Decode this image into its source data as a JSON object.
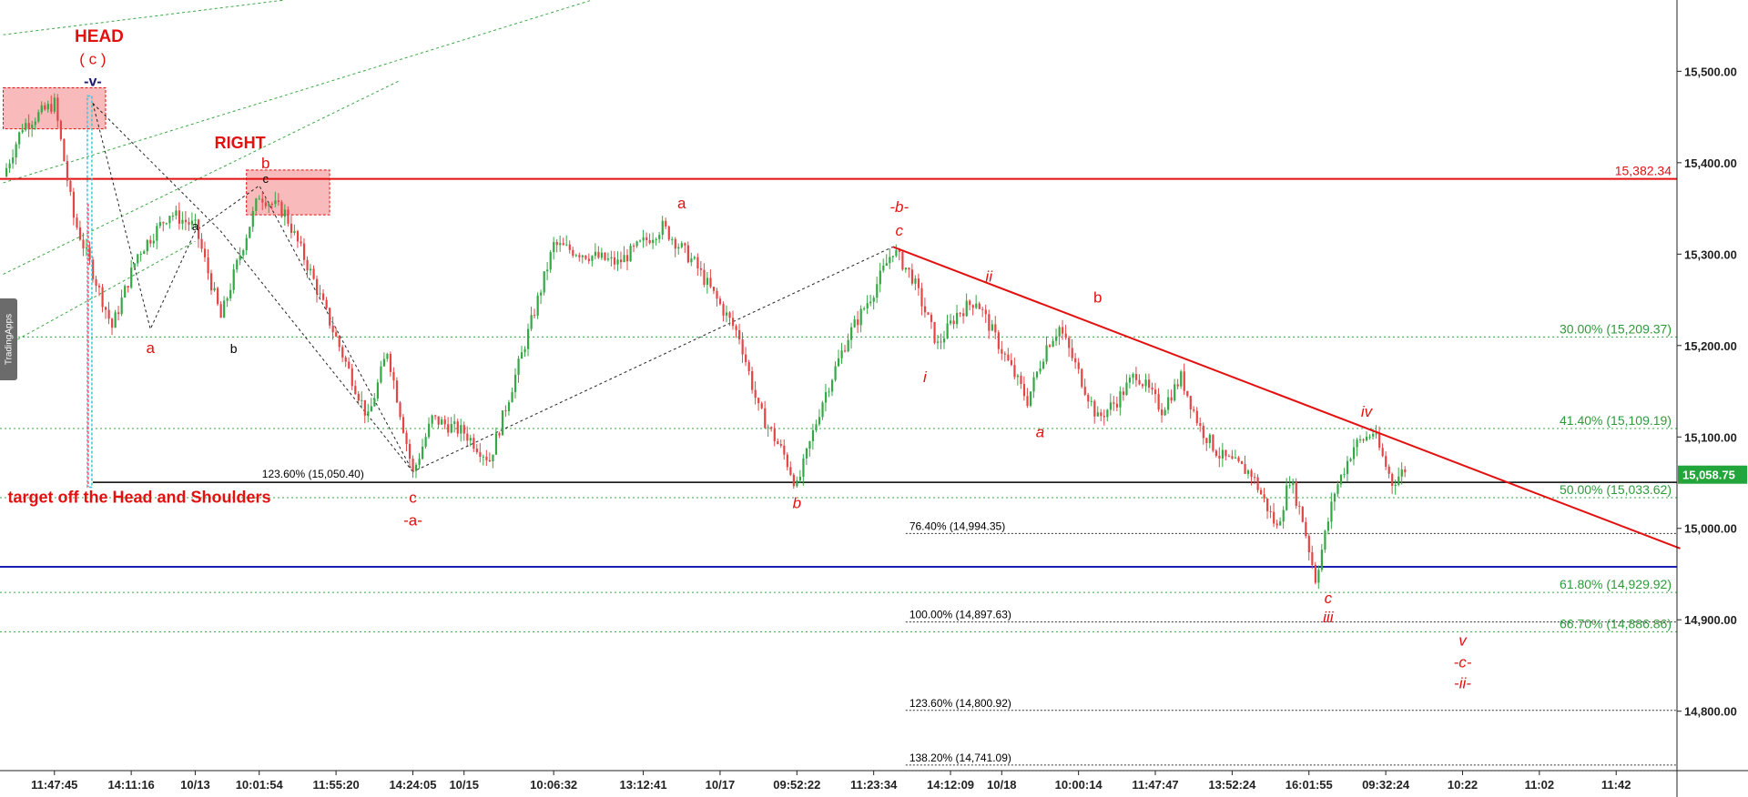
{
  "brand": "TradingApps",
  "chart_data": {
    "type": "candlestick",
    "y_axis": {
      "ticks": [
        "15,500.00",
        "15,400.00",
        "15,300.00",
        "15,200.00",
        "15,100.00",
        "15,000.00",
        "14,900.00",
        "14,800.00"
      ],
      "tick_values": [
        15500,
        15400,
        15300,
        15200,
        15100,
        15000,
        14900,
        14800
      ],
      "range": [
        14735,
        15578
      ]
    },
    "x_axis": {
      "ticks": [
        "11:47:45",
        "14:11:16",
        "10/13",
        "10:01:54",
        "11:55:20",
        "14:24:05",
        "10/15",
        "10:06:32",
        "13:12:41",
        "10/17",
        "09:52:22",
        "11:23:34",
        "14:12:09",
        "10/18",
        "10:00:14",
        "11:47:47",
        "13:52:24",
        "16:01:55",
        "09:32:24",
        "10:22",
        "11:02",
        "11:42"
      ],
      "tick_index": [
        8,
        20,
        30,
        40,
        52,
        64,
        72,
        86,
        100,
        112,
        124,
        136,
        148,
        156,
        168,
        180,
        192,
        204,
        216,
        228,
        240,
        252
      ],
      "bars_total": 262
    },
    "price_path": [
      [
        0,
        15385
      ],
      [
        3,
        15440
      ],
      [
        8,
        15465
      ],
      [
        11,
        15340
      ],
      [
        14,
        15280
      ],
      [
        17,
        15220
      ],
      [
        21,
        15300
      ],
      [
        26,
        15345
      ],
      [
        30,
        15330
      ],
      [
        34,
        15230
      ],
      [
        37,
        15300
      ],
      [
        40,
        15365
      ],
      [
        44,
        15345
      ],
      [
        48,
        15280
      ],
      [
        53,
        15190
      ],
      [
        57,
        15120
      ],
      [
        60,
        15195
      ],
      [
        64,
        15060
      ],
      [
        67,
        15120
      ],
      [
        72,
        15105
      ],
      [
        76,
        15075
      ],
      [
        81,
        15190
      ],
      [
        86,
        15310
      ],
      [
        91,
        15300
      ],
      [
        96,
        15290
      ],
      [
        103,
        15330
      ],
      [
        108,
        15290
      ],
      [
        115,
        15210
      ],
      [
        118,
        15130
      ],
      [
        122,
        15080
      ],
      [
        124,
        15045
      ],
      [
        128,
        15140
      ],
      [
        132,
        15210
      ],
      [
        136,
        15260
      ],
      [
        139,
        15305
      ],
      [
        142,
        15275
      ],
      [
        146,
        15200
      ],
      [
        149,
        15235
      ],
      [
        152,
        15250
      ],
      [
        156,
        15195
      ],
      [
        160,
        15140
      ],
      [
        163,
        15200
      ],
      [
        165,
        15220
      ],
      [
        168,
        15170
      ],
      [
        171,
        15120
      ],
      [
        174,
        15140
      ],
      [
        177,
        15170
      ],
      [
        181,
        15130
      ],
      [
        184,
        15165
      ],
      [
        187,
        15110
      ],
      [
        190,
        15080
      ],
      [
        195,
        15060
      ],
      [
        199,
        15000
      ],
      [
        201,
        15055
      ],
      [
        203,
        15010
      ],
      [
        205,
        14945
      ],
      [
        208,
        15040
      ],
      [
        211,
        15090
      ],
      [
        214,
        15105
      ],
      [
        217,
        15050
      ],
      [
        219,
        15065
      ]
    ],
    "current_price": {
      "value": 15058.75,
      "label": "15,058.75"
    },
    "horizontal_lines": [
      {
        "value": 15382.34,
        "label": "15,382.34",
        "color": "#e31010",
        "style": "solid"
      },
      {
        "value": 14958,
        "label": "",
        "color": "#1a1fb4",
        "style": "solid"
      },
      {
        "value": 15050.4,
        "label": "",
        "color": "#000000",
        "style": "solid"
      }
    ],
    "fib_levels_right": [
      {
        "value": 15209.37,
        "label": "30.00% (15,209.37)"
      },
      {
        "value": 15109.19,
        "label": "41.40% (15,109.19)"
      },
      {
        "value": 15033.62,
        "label": "50.00% (15,033.62)"
      },
      {
        "value": 14929.92,
        "label": "61.80% (14,929.92)"
      },
      {
        "value": 14886.86,
        "label": "66.70% (14,886.86)"
      }
    ],
    "fib_levels_mid": [
      {
        "value": 14994.35,
        "label": "76.40% (14,994.35)"
      },
      {
        "value": 14897.63,
        "label": "100.00% (14,897.63)"
      },
      {
        "value": 14800.92,
        "label": "123.60% (14,800.92)"
      },
      {
        "value": 14741.09,
        "label": "138.20% (14,741.09)"
      }
    ],
    "fib_level_left": {
      "value": 15050.4,
      "label": "123.60% (15,050.40)"
    },
    "trend_line": {
      "from": [
        139,
        15308
      ],
      "to": [
        262,
        14978
      ],
      "color": "#e31010"
    },
    "channel_lines": [
      {
        "from": [
          0,
          15198
        ],
        "to": [
          30,
          15314
        ],
        "color": "#3aa843"
      },
      {
        "from": [
          0,
          15278
        ],
        "to": [
          62,
          15490
        ],
        "color": "#3aa843"
      },
      {
        "from": [
          0,
          15378
        ],
        "to": [
          92,
          15578
        ],
        "color": "#3aa843"
      },
      {
        "from": [
          0,
          15540
        ],
        "to": [
          44,
          15578
        ],
        "color": "#3aa843"
      }
    ],
    "dotted_paths": [
      [
        [
          14,
          15465
        ],
        [
          23,
          15218
        ],
        [
          30,
          15325
        ],
        [
          40,
          15375
        ],
        [
          64,
          15062
        ],
        [
          139,
          15308
        ]
      ],
      [
        [
          14,
          15465
        ],
        [
          34,
          15325
        ],
        [
          64,
          15062
        ]
      ]
    ],
    "zones": [
      {
        "x0": 0,
        "x1": 16,
        "y0": 15482,
        "y1": 15437
      },
      {
        "x0": 38,
        "x1": 51,
        "y0": 15392,
        "y1": 15343
      }
    ],
    "head_marker": {
      "x": 13.5,
      "y0": 15473,
      "y1": 15045
    },
    "wave_labels": [
      {
        "x": 15,
        "value": 15532,
        "text": "HEAD",
        "color": "#e31010",
        "size": 19,
        "bold": true,
        "italic": false
      },
      {
        "x": 14,
        "value": 15508,
        "text": "( c )",
        "color": "#e31010",
        "size": 17,
        "bold": false,
        "italic": false
      },
      {
        "x": 14,
        "value": 15484,
        "text": "-v-",
        "color": "#1a1a6e",
        "size": 16,
        "bold": true,
        "italic": false
      },
      {
        "x": 37,
        "value": 15416,
        "text": "RIGHT",
        "color": "#e31010",
        "size": 18,
        "bold": true,
        "italic": false
      },
      {
        "x": 41,
        "value": 15394,
        "text": "b",
        "color": "#e31010",
        "size": 17,
        "bold": false,
        "italic": false
      },
      {
        "x": 41,
        "value": 15378,
        "text": "c",
        "color": "#000000",
        "size": 13,
        "bold": false,
        "italic": false
      },
      {
        "x": 30,
        "value": 15326,
        "text": "a",
        "color": "#000000",
        "size": 13,
        "bold": false,
        "italic": false
      },
      {
        "x": 23,
        "value": 15192,
        "text": "a",
        "color": "#e31010",
        "size": 17,
        "bold": false,
        "italic": false
      },
      {
        "x": 36,
        "value": 15192,
        "text": "b",
        "color": "#000000",
        "size": 14,
        "bold": false,
        "italic": false
      },
      {
        "x": 64,
        "value": 15028,
        "text": "c",
        "color": "#e31010",
        "size": 17,
        "bold": false,
        "italic": false
      },
      {
        "x": 64,
        "value": 15003,
        "text": "-a-",
        "color": "#e31010",
        "size": 17,
        "bold": false,
        "italic": false
      },
      {
        "x": 106,
        "value": 15350,
        "text": "a",
        "color": "#e31010",
        "size": 17,
        "bold": false,
        "italic": false
      },
      {
        "x": 124,
        "value": 15022,
        "text": "b",
        "color": "#e31010",
        "size": 17,
        "bold": false,
        "italic": true
      },
      {
        "x": 140,
        "value": 15346,
        "text": "-b-",
        "color": "#e31010",
        "size": 17,
        "bold": false,
        "italic": true
      },
      {
        "x": 140,
        "value": 15320,
        "text": "c",
        "color": "#e31010",
        "size": 17,
        "bold": false,
        "italic": true
      },
      {
        "x": 154,
        "value": 15270,
        "text": "ii",
        "color": "#e31010",
        "size": 17,
        "bold": false,
        "italic": true
      },
      {
        "x": 144,
        "value": 15160,
        "text": "i",
        "color": "#e31010",
        "size": 17,
        "bold": false,
        "italic": true
      },
      {
        "x": 171,
        "value": 15247,
        "text": "b",
        "color": "#e31010",
        "size": 17,
        "bold": false,
        "italic": false
      },
      {
        "x": 162,
        "value": 15100,
        "text": "a",
        "color": "#e31010",
        "size": 17,
        "bold": false,
        "italic": true
      },
      {
        "x": 213,
        "value": 15122,
        "text": "iv",
        "color": "#e31010",
        "size": 17,
        "bold": false,
        "italic": true
      },
      {
        "x": 207,
        "value": 14918,
        "text": "c",
        "color": "#e31010",
        "size": 17,
        "bold": false,
        "italic": true
      },
      {
        "x": 207,
        "value": 14897,
        "text": "iii",
        "color": "#e31010",
        "size": 17,
        "bold": false,
        "italic": true
      },
      {
        "x": 228,
        "value": 14872,
        "text": "v",
        "color": "#e31010",
        "size": 17,
        "bold": false,
        "italic": true
      },
      {
        "x": 228,
        "value": 14848,
        "text": "-c-",
        "color": "#e31010",
        "size": 17,
        "bold": false,
        "italic": true
      },
      {
        "x": 228,
        "value": 14825,
        "text": "-ii-",
        "color": "#e31010",
        "size": 17,
        "bold": false,
        "italic": true
      }
    ],
    "annotation": {
      "x": 1,
      "value": 15034,
      "text": "target off the Head and Shoulders",
      "color": "#e31010"
    }
  }
}
